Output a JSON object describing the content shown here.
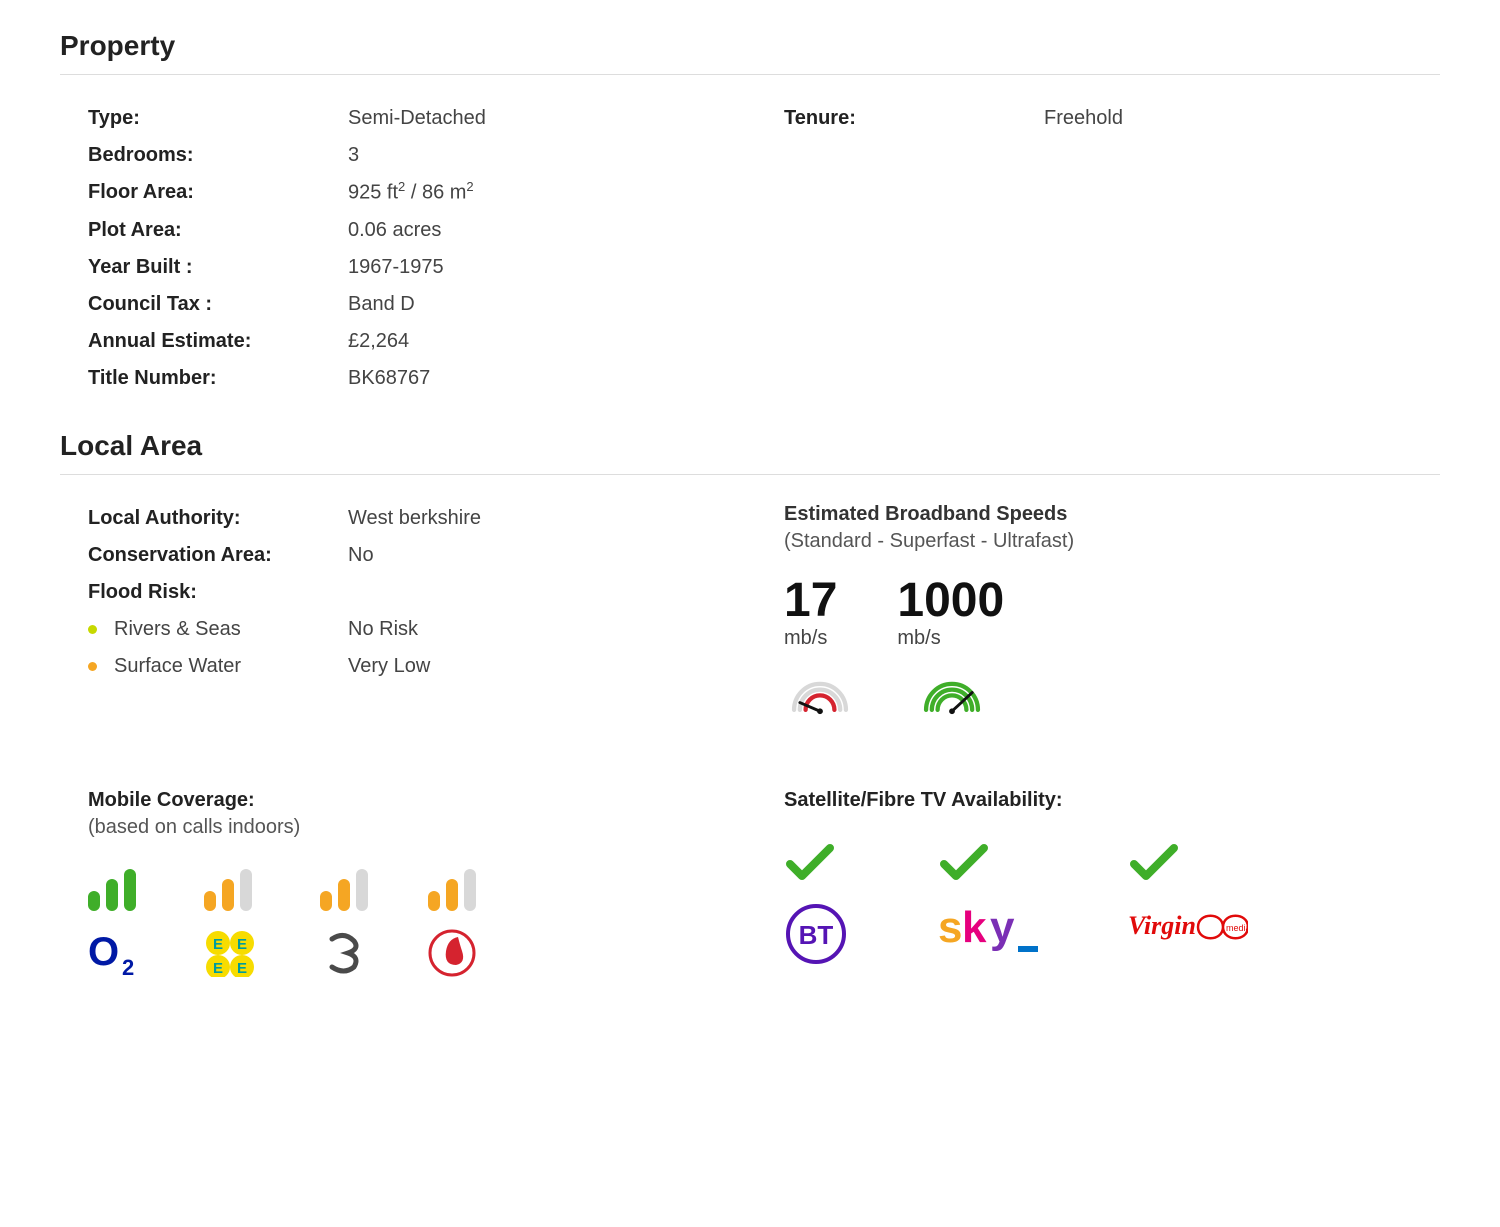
{
  "colors": {
    "green": "#3fae29",
    "orange": "#f5a623",
    "grey": "#d8d8d8",
    "red": "#d5232f",
    "btPurple": "#5514b4",
    "o2Blue": "#0019a5",
    "eeYellow": "#f7dc00",
    "eeTeal": "#009c9c",
    "threeGrey": "#4a4a4a",
    "skyOrange": "#f5a623",
    "skyRed": "#e6007e",
    "skyBlue": "#0072c9",
    "skyPurple": "#7b2fb5",
    "virginRed": "#e10a0a"
  },
  "property": {
    "heading": "Property",
    "left": [
      {
        "label": "Type:",
        "value": "Semi-Detached"
      },
      {
        "label": "Bedrooms:",
        "value": "3"
      },
      {
        "label": "Floor Area:",
        "value_html": "925 ft<sup>2</sup> / 86 m<sup>2</sup>"
      },
      {
        "label": "Plot Area:",
        "value": "0.06 acres"
      },
      {
        "label": "Year Built :",
        "value": "1967-1975"
      },
      {
        "label": "Council Tax :",
        "value": "Band D"
      },
      {
        "label": "Annual Estimate:",
        "value": "£2,264"
      },
      {
        "label": "Title Number:",
        "value": "BK68767"
      }
    ],
    "right": [
      {
        "label": "Tenure:",
        "value": "Freehold"
      }
    ]
  },
  "localArea": {
    "heading": "Local Area",
    "left": [
      {
        "label": "Local Authority:",
        "value": "West berkshire"
      },
      {
        "label": "Conservation Area:",
        "value": "No"
      },
      {
        "label": "Flood Risk:",
        "value": ""
      }
    ],
    "flood": [
      {
        "dotColor": "#c7d900",
        "label": "Rivers & Seas",
        "value": "No Risk"
      },
      {
        "dotColor": "#f5a623",
        "label": "Surface Water",
        "value": "Very Low"
      }
    ],
    "broadband": {
      "heading": "Estimated Broadband Speeds",
      "sub": "(Standard - Superfast - Ultrafast)",
      "speeds": [
        {
          "value": "17",
          "unit": "mb/s",
          "gauge": "low"
        },
        {
          "value": "1000",
          "unit": "mb/s",
          "gauge": "high"
        }
      ]
    }
  },
  "mobile": {
    "heading": "Mobile Coverage:",
    "sub": "(based on calls indoors)",
    "carriers": [
      {
        "name": "O2",
        "bars": 3,
        "color": "#3fae29"
      },
      {
        "name": "EE",
        "bars": 2,
        "color": "#f5a623"
      },
      {
        "name": "Three",
        "bars": 2,
        "color": "#f5a623"
      },
      {
        "name": "Vodafone",
        "bars": 2,
        "color": "#f5a623"
      }
    ]
  },
  "tv": {
    "heading": "Satellite/Fibre TV Availability:",
    "providers": [
      {
        "name": "BT",
        "available": true
      },
      {
        "name": "Sky",
        "available": true
      },
      {
        "name": "Virgin Media",
        "available": true
      }
    ]
  }
}
